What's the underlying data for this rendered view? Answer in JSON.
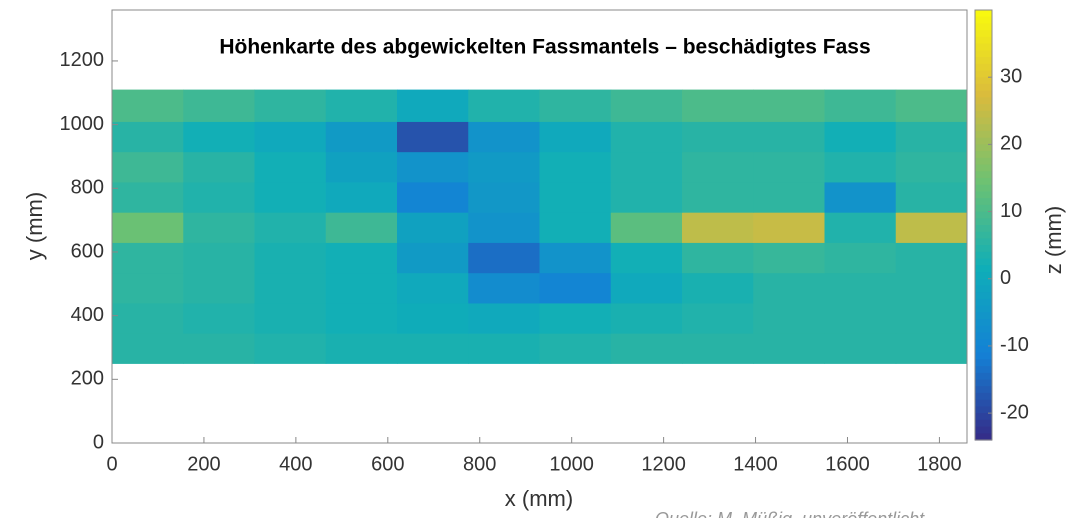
{
  "chart_data": {
    "type": "heatmap",
    "title": "Höhenkarte des abgewickelten Fassmantels – beschädigtes Fass",
    "x_label": "x (mm)",
    "y_label": "y (mm)",
    "colorbar_label": "z (mm)",
    "source": "Quelle: M. Müßig, unveröffentlicht",
    "colormap": "parula",
    "xlim": [
      0,
      1860
    ],
    "ylim": [
      0,
      1360
    ],
    "zlim": [
      -24,
      40
    ],
    "xticks": [
      0,
      200,
      400,
      600,
      800,
      1000,
      1200,
      1400,
      1600,
      1800
    ],
    "yticks": [
      0,
      200,
      400,
      600,
      800,
      1000,
      1200
    ],
    "zticks": [
      -20,
      -10,
      0,
      10,
      20,
      30
    ],
    "x_edges": [
      0,
      155,
      310,
      465,
      620,
      775,
      930,
      1085,
      1240,
      1395,
      1550,
      1705,
      1860
    ],
    "y_edges": [
      250,
      345,
      440,
      535,
      630,
      725,
      820,
      915,
      1010,
      1110
    ],
    "z": [
      [
        5,
        5,
        4,
        3,
        3,
        3,
        4,
        5,
        5,
        5,
        5,
        5
      ],
      [
        5,
        4,
        3,
        2,
        1,
        0,
        2,
        3,
        4,
        5,
        5,
        5
      ],
      [
        6,
        5,
        3,
        2,
        0,
        -8,
        -10,
        0,
        3,
        5,
        5,
        5
      ],
      [
        6,
        5,
        3,
        2,
        -4,
        -14,
        -6,
        2,
        6,
        7,
        6,
        5
      ],
      [
        14,
        6,
        4,
        8,
        -2,
        -6,
        2,
        12,
        24,
        25,
        4,
        24
      ],
      [
        6,
        4,
        2,
        0,
        -10,
        -5,
        2,
        4,
        6,
        6,
        -6,
        5
      ],
      [
        8,
        5,
        2,
        -2,
        -6,
        -4,
        2,
        4,
        6,
        6,
        4,
        6
      ],
      [
        5,
        2,
        0,
        -4,
        -18,
        -6,
        0,
        4,
        5,
        5,
        2,
        5
      ],
      [
        10,
        8,
        6,
        4,
        0,
        4,
        6,
        8,
        10,
        10,
        8,
        10
      ]
    ]
  }
}
